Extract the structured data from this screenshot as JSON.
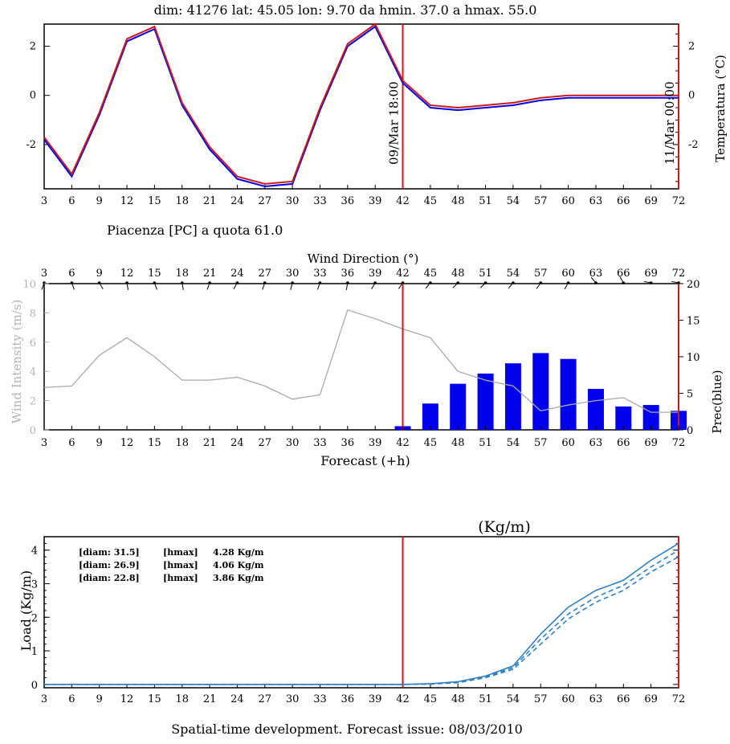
{
  "header_line": "dim: 41276 lat: 45.05 lon:  9.70  da hmin.  37.0 a hmax.   55.0",
  "location_caption": "Piacenza [PC] a quota 61.0",
  "footer_caption": "Spatial-time development. Forecast issue: 08/03/2010",
  "colors": {
    "red": "#cc1a1a",
    "blue": "#0000ee",
    "gray": "#aaaaaa",
    "load": "#2e7fc4"
  },
  "chart_data": [
    {
      "type": "line",
      "ylabel": "Temperatura (°C)",
      "xlim": [
        3,
        72
      ],
      "ylim": [
        -3.8,
        2.9
      ],
      "x_ticks": [
        3,
        6,
        9,
        12,
        15,
        18,
        21,
        24,
        27,
        30,
        33,
        36,
        39,
        42,
        45,
        48,
        51,
        54,
        57,
        60,
        63,
        66,
        69,
        72
      ],
      "x_tick_labels": [
        "3",
        "6",
        "9",
        "12",
        "15",
        "18",
        "21",
        "24",
        "27",
        "30",
        "33",
        "36",
        "39",
        "42",
        "45",
        "48",
        "51",
        "54",
        "57",
        "60",
        "63",
        "66",
        "69",
        "72"
      ],
      "y_ticks": [
        -2,
        0,
        2
      ],
      "y_tick_labels": [
        "-2",
        "0",
        "2"
      ],
      "right_y_tick_labels": [
        "-2",
        "0",
        "2"
      ],
      "marker_x": 42,
      "markers": [
        {
          "x": 42,
          "label": "09/Mar 18:00"
        },
        {
          "x": 72,
          "label": "11/Mar 00:00"
        }
      ],
      "series": [
        {
          "color": "blue",
          "x": [
            3,
            6,
            9,
            12,
            15,
            18,
            21,
            24,
            27,
            30,
            33,
            36,
            39,
            42,
            45,
            48,
            51,
            54,
            57,
            60,
            63,
            66,
            69,
            72
          ],
          "values": [
            -1.8,
            -3.3,
            -0.8,
            2.2,
            2.7,
            -0.4,
            -2.2,
            -3.4,
            -3.7,
            -3.6,
            -0.6,
            2.0,
            2.8,
            0.5,
            -0.5,
            -0.6,
            -0.5,
            -0.4,
            -0.2,
            -0.1,
            -0.1,
            -0.1,
            -0.1,
            -0.1
          ]
        },
        {
          "color": "red",
          "x": [
            3,
            6,
            9,
            12,
            15,
            18,
            21,
            24,
            27,
            30,
            33,
            36,
            39,
            42,
            45,
            48,
            51,
            54,
            57,
            60,
            63,
            66,
            69,
            72
          ],
          "values": [
            -1.7,
            -3.2,
            -0.7,
            2.3,
            2.8,
            -0.3,
            -2.1,
            -3.3,
            -3.6,
            -3.5,
            -0.5,
            2.1,
            2.9,
            0.6,
            -0.4,
            -0.5,
            -0.4,
            -0.3,
            -0.1,
            0.0,
            0.0,
            0.0,
            0.0,
            0.0
          ]
        }
      ]
    },
    {
      "type": "bar",
      "title": "Wind Direction (°)",
      "xlabel": "Forecast (+h)",
      "ylabel": "Wind Intensity (m/s)",
      "y2label": "Prec(blue)",
      "xlim": [
        3,
        72
      ],
      "ylim": [
        0,
        10
      ],
      "y2lim": [
        0,
        20
      ],
      "x_ticks": [
        3,
        6,
        9,
        12,
        15,
        18,
        21,
        24,
        27,
        30,
        33,
        36,
        39,
        42,
        45,
        48,
        51,
        54,
        57,
        60,
        63,
        66,
        69,
        72
      ],
      "x_tick_labels": [
        "3",
        "6",
        "9",
        "12",
        "15",
        "18",
        "21",
        "24",
        "27",
        "30",
        "33",
        "36",
        "39",
        "42",
        "45",
        "48",
        "51",
        "54",
        "57",
        "60",
        "63",
        "66",
        "69",
        "72"
      ],
      "top_x_tick_labels": [
        "3",
        "6",
        "9",
        "12",
        "15",
        "18",
        "21",
        "24",
        "27",
        "30",
        "33",
        "36",
        "39",
        "42",
        "45",
        "48",
        "51",
        "54",
        "57",
        "60",
        "63",
        "66",
        "69",
        "72"
      ],
      "y_ticks": [
        0,
        2,
        4,
        6,
        8,
        10
      ],
      "y_tick_labels": [
        "0",
        "2",
        "4",
        "6",
        "8",
        "10"
      ],
      "y2_ticks": [
        0,
        5,
        10,
        15,
        20
      ],
      "y2_tick_labels": [
        "0",
        "5",
        "10",
        "15",
        "20"
      ],
      "marker_x": 42,
      "wind_intensity": {
        "x": [
          3,
          6,
          9,
          12,
          15,
          18,
          21,
          24,
          27,
          30,
          33,
          36,
          39,
          42,
          45,
          48,
          51,
          54,
          57,
          60,
          63,
          66,
          69,
          72
        ],
        "values": [
          2.9,
          3.0,
          5.1,
          6.3,
          5.0,
          3.4,
          3.4,
          3.6,
          3.0,
          2.1,
          2.4,
          8.2,
          7.6,
          6.9,
          6.3,
          4.0,
          3.4,
          3.0,
          1.3,
          1.7,
          2.0,
          2.2,
          1.2,
          1.2
        ]
      },
      "precipitation": {
        "x": [
          42,
          45,
          48,
          51,
          54,
          57,
          60,
          63,
          66,
          69,
          72
        ],
        "values": [
          0.5,
          3.6,
          6.3,
          7.7,
          9.1,
          10.5,
          9.7,
          5.6,
          3.2,
          3.4,
          2.6
        ]
      },
      "wind_direction_deg": [
        200,
        160,
        150,
        170,
        160,
        170,
        200,
        210,
        200,
        195,
        200,
        190,
        210,
        215,
        220,
        225,
        225,
        220,
        215,
        210,
        320,
        330,
        280,
        280
      ]
    },
    {
      "type": "line",
      "title": "(Kg/m)",
      "ylabel": "Load (Kg/m)",
      "xlim": [
        3,
        72
      ],
      "ylim": [
        -0.1,
        4.4
      ],
      "x_ticks": [
        3,
        6,
        9,
        12,
        15,
        18,
        21,
        24,
        27,
        30,
        33,
        36,
        39,
        42,
        45,
        48,
        51,
        54,
        57,
        60,
        63,
        66,
        69,
        72
      ],
      "x_tick_labels": [
        "3",
        "6",
        "9",
        "12",
        "15",
        "18",
        "21",
        "24",
        "27",
        "30",
        "33",
        "36",
        "39",
        "42",
        "45",
        "48",
        "51",
        "54",
        "57",
        "60",
        "63",
        "66",
        "69",
        "72"
      ],
      "y_ticks": [
        0,
        1,
        2,
        3,
        4
      ],
      "y_tick_labels": [
        "0",
        "1",
        "2",
        "3",
        "4"
      ],
      "marker_x": 42,
      "legend": [
        {
          "diam": "[diam: 31.5]",
          "tag": "[hmax]",
          "value": "4.28 Kg/m"
        },
        {
          "diam": "[diam: 26.9]",
          "tag": "[hmax]",
          "value": "4.06 Kg/m"
        },
        {
          "diam": "[diam: 22.8]",
          "tag": "[hmax]",
          "value": "3.86 Kg/m"
        }
      ],
      "series": [
        {
          "style": "solid",
          "x": [
            3,
            6,
            9,
            12,
            15,
            18,
            21,
            24,
            27,
            30,
            33,
            36,
            39,
            42,
            45,
            48,
            51,
            54,
            57,
            60,
            63,
            66,
            69,
            72
          ],
          "values": [
            0,
            0,
            0,
            0,
            0,
            0,
            0,
            0,
            0,
            0,
            0,
            0,
            0,
            0,
            0.02,
            0.08,
            0.25,
            0.55,
            1.5,
            2.3,
            2.8,
            3.1,
            3.7,
            4.2
          ]
        },
        {
          "style": "dashed",
          "x": [
            3,
            6,
            9,
            12,
            15,
            18,
            21,
            24,
            27,
            30,
            33,
            36,
            39,
            42,
            45,
            48,
            51,
            54,
            57,
            60,
            63,
            66,
            69,
            72
          ],
          "values": [
            0,
            0,
            0,
            0,
            0,
            0,
            0,
            0,
            0,
            0,
            0,
            0,
            0,
            0,
            0.01,
            0.06,
            0.22,
            0.5,
            1.35,
            2.1,
            2.6,
            2.95,
            3.5,
            4.0
          ]
        },
        {
          "style": "dashed",
          "x": [
            3,
            6,
            9,
            12,
            15,
            18,
            21,
            24,
            27,
            30,
            33,
            36,
            39,
            42,
            45,
            48,
            51,
            54,
            57,
            60,
            63,
            66,
            69,
            72
          ],
          "values": [
            0,
            0,
            0,
            0,
            0,
            0,
            0,
            0,
            0,
            0,
            0,
            0,
            0,
            0,
            0.01,
            0.05,
            0.2,
            0.45,
            1.2,
            1.95,
            2.45,
            2.8,
            3.35,
            3.8
          ]
        }
      ]
    }
  ]
}
